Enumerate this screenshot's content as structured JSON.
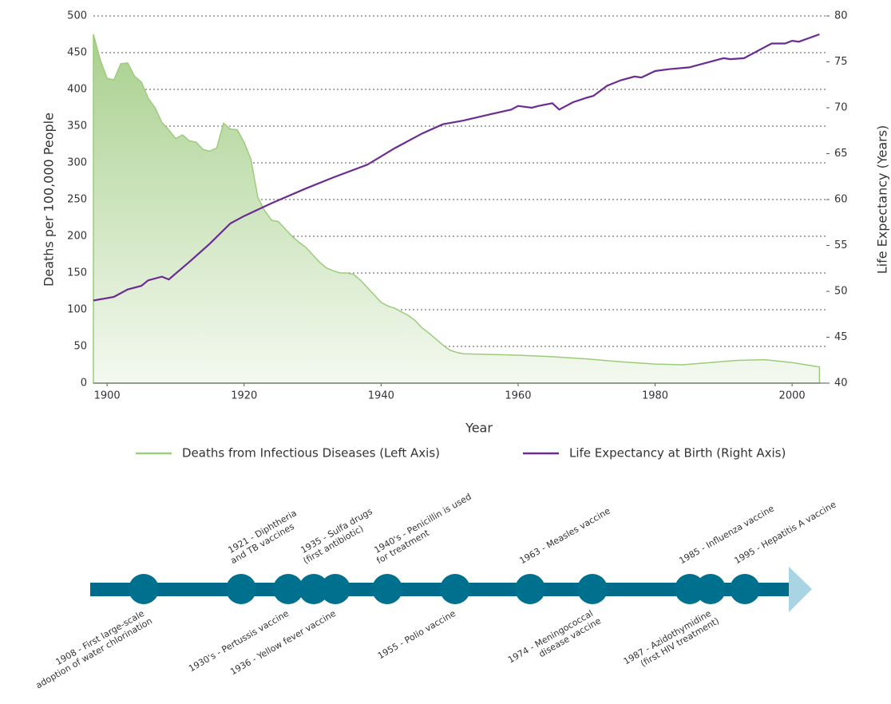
{
  "chart_data": {
    "type": "area-line",
    "x_label": "Year",
    "y_label": "Deaths per 100,000 People",
    "y2_label": "Life Expectancy (Years)",
    "xlim": [
      1898,
      2005
    ],
    "xticks": [
      1900,
      1920,
      1940,
      1960,
      1980,
      2000
    ],
    "ylim": [
      0,
      500
    ],
    "yticks": [
      0,
      50,
      100,
      150,
      200,
      250,
      300,
      350,
      400,
      450,
      500
    ],
    "y2lim": [
      40,
      80
    ],
    "y2ticks": [
      40,
      45,
      50,
      55,
      60,
      65,
      70,
      75,
      80
    ],
    "grid": true,
    "series": [
      {
        "name": "Deaths from Infectious Diseases (Left Axis)",
        "color": "#9ccc7a",
        "type": "area",
        "x": [
          1898,
          1899,
          1900,
          1901,
          1902,
          1903,
          1904,
          1905,
          1906,
          1907,
          1908,
          1909,
          1910,
          1911,
          1912,
          1913,
          1914,
          1915,
          1916,
          1917,
          1918,
          1919,
          1920,
          1921,
          1922,
          1923,
          1924,
          1925,
          1926,
          1927,
          1928,
          1929,
          1930,
          1931,
          1932,
          1933,
          1934,
          1935,
          1936,
          1937,
          1938,
          1939,
          1940,
          1941,
          1942,
          1943,
          1944,
          1945,
          1946,
          1947,
          1948,
          1949,
          1950,
          1951,
          1952,
          1956,
          1960,
          1965,
          1970,
          1975,
          1980,
          1984,
          1988,
          1992,
          1996,
          2000,
          2004
        ],
        "values": [
          475,
          440,
          415,
          413,
          435,
          436,
          418,
          410,
          388,
          375,
          355,
          345,
          333,
          338,
          330,
          328,
          318,
          316,
          320,
          354,
          346,
          345,
          328,
          305,
          253,
          235,
          222,
          220,
          210,
          200,
          192,
          185,
          175,
          165,
          157,
          153,
          150,
          150,
          148,
          140,
          130,
          120,
          110,
          105,
          102,
          97,
          92,
          85,
          75,
          68,
          60,
          52,
          45,
          42,
          40,
          39,
          38,
          36,
          33,
          29,
          26,
          25,
          28,
          31,
          32,
          28,
          22
        ]
      },
      {
        "name": "Life Expectancy at Birth (Right Axis)",
        "color": "#6a2c91",
        "type": "line",
        "axis": "y2",
        "x": [
          1898,
          1901,
          1903,
          1905,
          1906,
          1908,
          1909,
          1912,
          1915,
          1918,
          1920,
          1924,
          1929,
          1933,
          1938,
          1942,
          1946,
          1949,
          1952,
          1956,
          1959,
          1960,
          1962,
          1963,
          1965,
          1966,
          1968,
          1970,
          1971,
          1973,
          1975,
          1977,
          1978,
          1980,
          1982,
          1985,
          1986,
          1989,
          1990,
          1991,
          1993,
          1995,
          1997,
          1999,
          2000,
          2001,
          2004
        ],
        "values": [
          49.0,
          49.4,
          50.2,
          50.6,
          51.2,
          51.6,
          51.3,
          53.2,
          55.2,
          57.4,
          58.2,
          59.6,
          61.2,
          62.4,
          63.8,
          65.6,
          67.2,
          68.2,
          68.6,
          69.3,
          69.8,
          70.2,
          70.0,
          70.2,
          70.5,
          69.8,
          70.6,
          71.1,
          71.3,
          72.4,
          73.0,
          73.4,
          73.3,
          74.0,
          74.2,
          74.4,
          74.6,
          75.2,
          75.4,
          75.3,
          75.4,
          76.2,
          77.0,
          77.0,
          77.3,
          77.2,
          78.0
        ]
      }
    ]
  },
  "timeline": [
    {
      "lines": [
        "1908 - First large-scale",
        "adoption of water chlorination"
      ],
      "side": "below"
    },
    {
      "lines": [
        "1921 - Diphtheria",
        "and TB vaccines"
      ],
      "side": "above"
    },
    {
      "lines": [
        "1930's - Pertussis vaccine"
      ],
      "side": "below"
    },
    {
      "lines": [
        "1935 - Sulfa drugs",
        "(first antibiotic)"
      ],
      "side": "above"
    },
    {
      "lines": [
        "1936 - Yellow fever vaccine"
      ],
      "side": "below"
    },
    {
      "lines": [
        "1940's - Penicillin is used",
        "for treatment"
      ],
      "side": "above"
    },
    {
      "lines": [
        "1955 - Polio vaccine"
      ],
      "side": "below"
    },
    {
      "lines": [
        "1963 - Measles vaccine"
      ],
      "side": "above"
    },
    {
      "lines": [
        "1974 - Meningococcal",
        "disease vaccine"
      ],
      "side": "below"
    },
    {
      "lines": [
        "1985 - Influenza vaccine"
      ],
      "side": "above"
    },
    {
      "lines": [
        "1987 - Azidothymidine",
        "(first HIV treatment)"
      ],
      "side": "below"
    },
    {
      "lines": [
        "1995 - Hepatitis A vaccine"
      ],
      "side": "above"
    }
  ]
}
